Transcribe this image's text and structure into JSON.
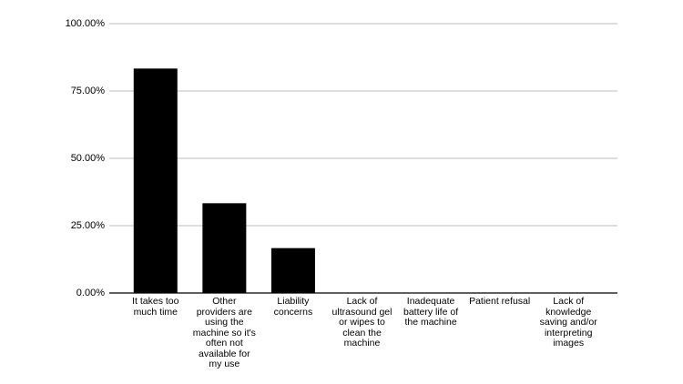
{
  "chart_data": {
    "type": "bar",
    "categories": [
      "It takes too much time",
      "Other providers are using the machine so it's often not available for my use",
      "Liability concerns",
      "Lack of ultrasound gel or wipes to clean the machine",
      "Inadequate battery life of the machine",
      "Patient refusal",
      "Lack of knowledge saving and/or interpreting images"
    ],
    "values": [
      83.33,
      33.33,
      16.67,
      0,
      0,
      0,
      0
    ],
    "color": "#000000",
    "ylim": [
      0,
      100
    ],
    "yticks": [
      {
        "value": 0,
        "label": "0.00%"
      },
      {
        "value": 25,
        "label": "25.00%"
      },
      {
        "value": 50,
        "label": "50.00%"
      },
      {
        "value": 75,
        "label": "75.00%"
      },
      {
        "value": 100,
        "label": "100.00%"
      }
    ],
    "grid": true
  }
}
